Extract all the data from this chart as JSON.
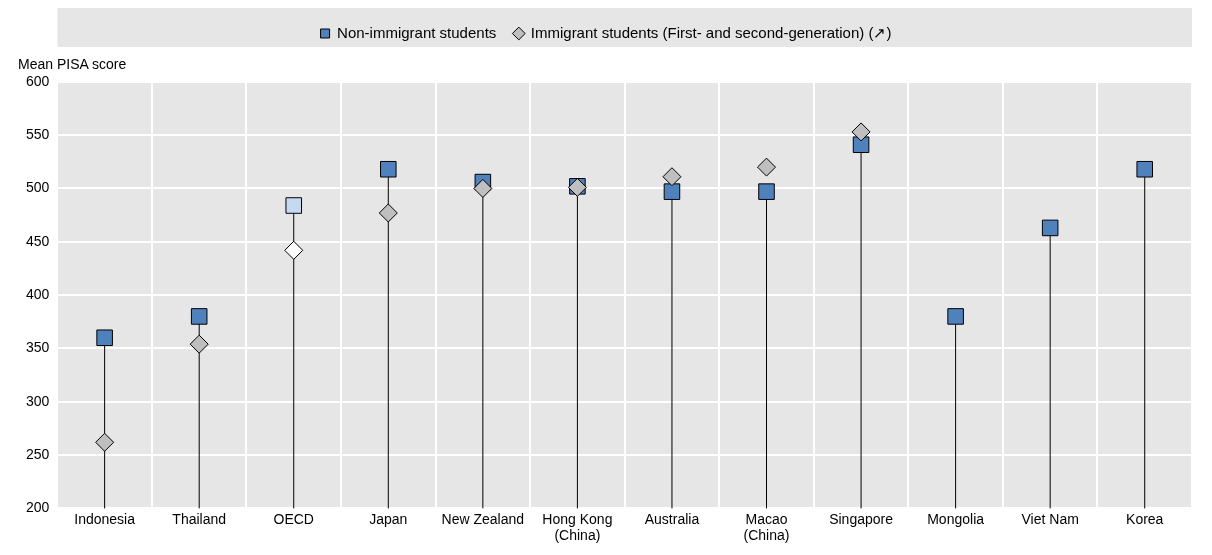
{
  "chart_data": {
    "type": "lollipop",
    "ylabel": "Mean PISA score",
    "categories": [
      "Indonesia",
      "Thailand",
      "OECD",
      "Japan",
      "New Zealand",
      "Hong Kong (China)",
      "Australia",
      "Macao (China)",
      "Singapore",
      "Mongolia",
      "Viet Nam",
      "Korea"
    ],
    "series": [
      {
        "name": "Non-immigrant students",
        "marker": "square",
        "color": "#4f81bd",
        "colors": [
          "#4f81bd",
          "#4f81bd",
          "#c6d9f1",
          "#4f81bd",
          "#4f81bd",
          "#4f81bd",
          "#4f81bd",
          "#4f81bd",
          "#4f81bd",
          "#4f81bd",
          "#4f81bd",
          "#4f81bd"
        ],
        "values": [
          360,
          380,
          484,
          518,
          506,
          502,
          497,
          497,
          541,
          380,
          463,
          518
        ]
      },
      {
        "name": "Immigrant students (First- and second-generation) (↗)",
        "type": "scatter",
        "marker": "diamond",
        "color": "#bfbfbf",
        "colors": [
          "#bfbfbf",
          "#bfbfbf",
          "#ffffff",
          "#bfbfbf",
          "#bfbfbf",
          "#bfbfbf",
          "#bfbfbf",
          "#bfbfbf",
          "#bfbfbf",
          null,
          null,
          null
        ],
        "values": [
          262,
          354,
          442,
          477,
          500,
          501,
          511,
          520,
          553,
          null,
          null,
          null
        ]
      }
    ],
    "ylim": [
      200,
      600
    ],
    "yticks": [
      200,
      250,
      300,
      350,
      400,
      450,
      500,
      550,
      600
    ],
    "grid": true,
    "legend": "top"
  }
}
